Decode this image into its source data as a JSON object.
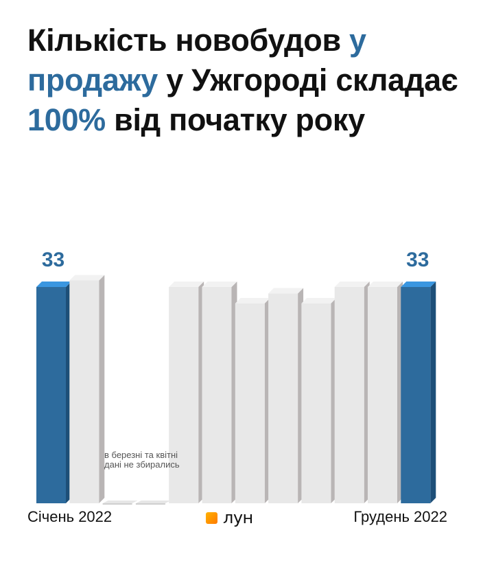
{
  "title_parts": [
    {
      "text": "Кількість новобудов ",
      "accent": false
    },
    {
      "text": "у продажу",
      "accent": true
    },
    {
      "text": " у Ужгороді складає ",
      "accent": false
    },
    {
      "text": "100%",
      "accent": true
    },
    {
      "text": " від початку року",
      "accent": false
    }
  ],
  "colors": {
    "accent": "#2d6b9d",
    "bar_highlight": "#2d6b9d",
    "bar_normal": "#e8e8e8"
  },
  "logo_text": "лун",
  "note": "в березні та квітні дані не збирались",
  "x_start_label": "Січень 2022",
  "x_end_label": "Грудень 2022",
  "chart_data": {
    "type": "bar",
    "title": "Кількість новобудов у продажу у Ужгороді складає 100% від початку року",
    "categories": [
      "Січень 2022",
      "",
      "",
      "",
      "",
      "",
      "",
      "",
      "",
      "",
      "",
      "Грудень 2022"
    ],
    "values": [
      33,
      34,
      null,
      null,
      33,
      33,
      30.5,
      32,
      30.5,
      33,
      33,
      33
    ],
    "highlighted": [
      0,
      11
    ],
    "data_labels": {
      "0": "33",
      "11": "33"
    },
    "missing_note": "в березні та квітні дані не збирались",
    "xlabel": "",
    "ylabel": "",
    "ylim": [
      0,
      36
    ],
    "grid": false,
    "legend": "none"
  }
}
